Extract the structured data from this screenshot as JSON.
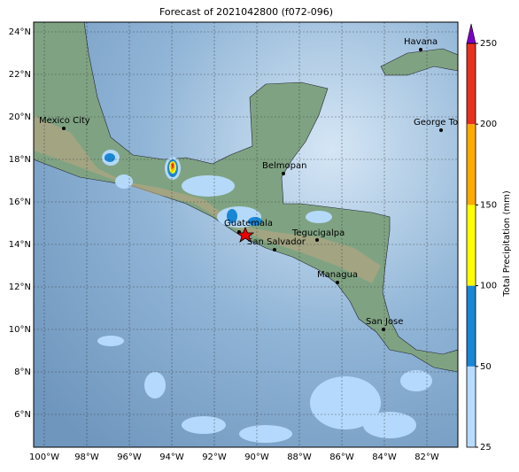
{
  "title": "Forecast of 2021042800 (f072-096)",
  "lat_ticks": [
    {
      "value": 24,
      "label": "24°N"
    },
    {
      "value": 22,
      "label": "22°N"
    },
    {
      "value": 20,
      "label": "20°N"
    },
    {
      "value": 18,
      "label": "18°N"
    },
    {
      "value": 16,
      "label": "16°N"
    },
    {
      "value": 14,
      "label": "14°N"
    },
    {
      "value": 12,
      "label": "12°N"
    },
    {
      "value": 10,
      "label": "10°N"
    },
    {
      "value": 8,
      "label": "8°N"
    },
    {
      "value": 6,
      "label": "6°N"
    }
  ],
  "lon_ticks": [
    {
      "value": -100,
      "label": "100°W"
    },
    {
      "value": -98,
      "label": "98°W"
    },
    {
      "value": -96,
      "label": "96°W"
    },
    {
      "value": -94,
      "label": "94°W"
    },
    {
      "value": -92,
      "label": "92°W"
    },
    {
      "value": -90,
      "label": "90°W"
    },
    {
      "value": -88,
      "label": "88°W"
    },
    {
      "value": -86,
      "label": "86°W"
    },
    {
      "value": -84,
      "label": "84°W"
    },
    {
      "value": -82,
      "label": "82°W"
    }
  ],
  "cities": [
    "Mexico City",
    "Havana",
    "George Town",
    "Belmopan",
    "Guatemala",
    "San Salvador",
    "Tegucigalpa",
    "Managua",
    "San Jose"
  ],
  "colorbar": {
    "label": "Total Precipitation (mm)",
    "levels": [
      25,
      50,
      100,
      150,
      200,
      250
    ],
    "colors": [
      "#b8dcff",
      "#1a86d6",
      "#ffff00",
      "#ffaa00",
      "#e8301f"
    ],
    "extend_color": "#7a00c8"
  }
}
